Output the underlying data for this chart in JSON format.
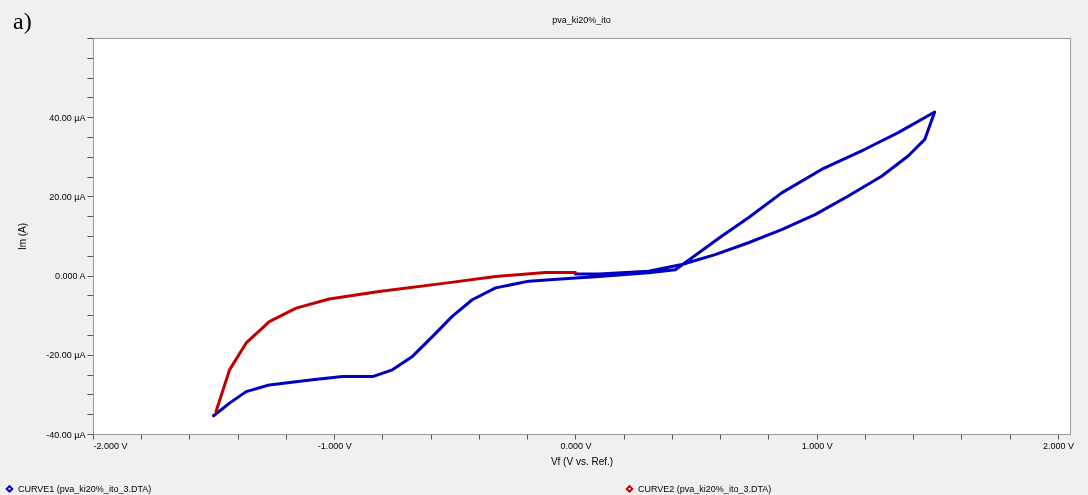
{
  "chart_data": {
    "type": "line",
    "title": "pva_ki20%_ito",
    "xlabel": "Vf (V vs. Ref.)",
    "ylabel": "Im (A)",
    "annotations": [
      "a)"
    ],
    "xlim": [
      -2,
      2.05
    ],
    "ylim": [
      -40,
      60
    ],
    "xticks": [
      {
        "value": -2,
        "label": "-2.000 V"
      },
      {
        "value": -1.8,
        "label": null
      },
      {
        "value": -1.6,
        "label": null
      },
      {
        "value": -1.4,
        "label": null
      },
      {
        "value": -1.2,
        "label": null
      },
      {
        "value": -1,
        "label": "-1.000 V"
      },
      {
        "value": -0.8,
        "label": null
      },
      {
        "value": -0.6,
        "label": null
      },
      {
        "value": -0.4,
        "label": null
      },
      {
        "value": -0.2,
        "label": null
      },
      {
        "value": 0,
        "label": "0.000 V"
      },
      {
        "value": 0.2,
        "label": null
      },
      {
        "value": 0.4,
        "label": null
      },
      {
        "value": 0.6,
        "label": null
      },
      {
        "value": 0.8,
        "label": null
      },
      {
        "value": 1,
        "label": "1.000 V"
      },
      {
        "value": 1.2,
        "label": null
      },
      {
        "value": 1.4,
        "label": null
      },
      {
        "value": 1.6,
        "label": null
      },
      {
        "value": 1.8,
        "label": null
      },
      {
        "value": 2,
        "label": "2.000 V"
      }
    ],
    "yticks": [
      {
        "value": -40,
        "label": "-40.00 µA"
      },
      {
        "value": -35,
        "label": null
      },
      {
        "value": -30,
        "label": null
      },
      {
        "value": -25,
        "label": null
      },
      {
        "value": -20,
        "label": "-20.00 µA"
      },
      {
        "value": -15,
        "label": null
      },
      {
        "value": -10,
        "label": null
      },
      {
        "value": -5,
        "label": null
      },
      {
        "value": 0,
        "label": "0.000 A"
      },
      {
        "value": 5,
        "label": null
      },
      {
        "value": 10,
        "label": null
      },
      {
        "value": 15,
        "label": null
      },
      {
        "value": 20,
        "label": "20.00 µA"
      },
      {
        "value": 25,
        "label": null
      },
      {
        "value": 30,
        "label": null
      },
      {
        "value": 35,
        "label": null
      },
      {
        "value": 40,
        "label": "40.00 µA"
      },
      {
        "value": 45,
        "label": null
      },
      {
        "value": 50,
        "label": null
      },
      {
        "value": 55,
        "label": null
      },
      {
        "value": 60,
        "label": null
      }
    ],
    "grid": false,
    "legend": "bottom",
    "marker": "none",
    "line_style": "solid",
    "series": [
      {
        "name": "CURVE1 (pva_ki20%_ito_3.DTA)",
        "color": "#0000c0",
        "x": [
          -1.5,
          -1.434,
          -1.365,
          -1.269,
          -1.09,
          -0.966,
          -0.841,
          -0.759,
          -0.676,
          -0.593,
          -0.511,
          -0.428,
          -0.331,
          -0.193,
          0,
          0.083,
          0.303,
          0.414,
          0.51,
          0.607,
          0.717,
          0.855,
          1.02,
          1.2,
          1.338,
          1.489,
          1.448,
          1.379,
          1.269,
          1.131,
          0.993,
          0.855,
          0.717,
          0.579,
          0.441,
          0.303,
          0.097,
          0
        ],
        "values": [
          -35.4,
          -32.2,
          -29.3,
          -27.6,
          -26.3,
          -25.5,
          -25.5,
          -23.8,
          -20.4,
          -15.4,
          -10.3,
          -6.1,
          -3.1,
          -1.4,
          -0.6,
          -0.3,
          0.7,
          1.5,
          5.7,
          10.0,
          14.6,
          20.9,
          26.8,
          31.9,
          36.1,
          41.3,
          34.4,
          30.2,
          25.1,
          20.1,
          15.4,
          11.6,
          8.3,
          5.3,
          2.8,
          1.1,
          0.4,
          0.4
        ]
      },
      {
        "name": "CURVE2 (pva_ki20%_ito_3.DTA)",
        "color": "#c00000",
        "x": [
          0,
          -0.124,
          -0.331,
          -0.538,
          -0.814,
          -1.021,
          -1.158,
          -1.269,
          -1.365,
          -1.434,
          -1.49
        ],
        "values": [
          0.8,
          0.8,
          -0.2,
          -1.9,
          -4.0,
          -5.9,
          -8.2,
          -11.6,
          -17.0,
          -23.8,
          -34.3
        ]
      }
    ]
  }
}
